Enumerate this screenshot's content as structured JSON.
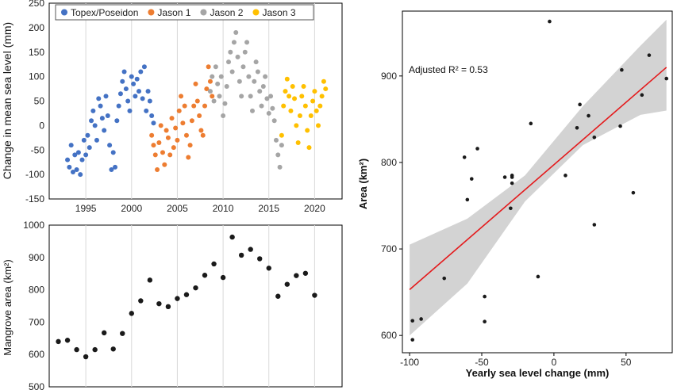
{
  "chart_data": [
    {
      "id": "sea-level",
      "type": "scatter",
      "ylabel": "Change in mean sea level (mm)",
      "xlabel": "",
      "xlim": [
        1991,
        2023
      ],
      "ylim": [
        -150,
        250
      ],
      "xticks": [
        1995,
        2000,
        2005,
        2010,
        2015,
        2020
      ],
      "yticks": [
        -150,
        -100,
        -50,
        0,
        50,
        100,
        150,
        200,
        250
      ],
      "grid": "vertical",
      "legend": "top",
      "series": [
        {
          "name": "Topex/Poseidon",
          "color": "#4472c4",
          "x": [
            1993.0,
            1993.2,
            1993.4,
            1993.6,
            1993.8,
            1994.0,
            1994.2,
            1994.4,
            1994.6,
            1994.8,
            1995.0,
            1995.2,
            1995.4,
            1995.6,
            1995.8,
            1996.0,
            1996.2,
            1996.4,
            1996.6,
            1996.8,
            1997.0,
            1997.2,
            1997.4,
            1997.6,
            1997.8,
            1998.0,
            1998.2,
            1998.4,
            1998.6,
            1998.8,
            1999.0,
            1999.2,
            1999.4,
            1999.6,
            1999.8,
            2000.0,
            2000.2,
            2000.4,
            2000.6,
            2000.8,
            2001.0,
            2001.2,
            2001.4,
            2001.6,
            2001.8,
            2002.0,
            2002.2,
            2002.4
          ],
          "y": [
            -70,
            -85,
            -40,
            -95,
            -60,
            -90,
            -55,
            -100,
            -70,
            -30,
            -60,
            -20,
            -45,
            10,
            30,
            0,
            -30,
            55,
            40,
            15,
            -10,
            60,
            20,
            -40,
            -90,
            -55,
            -85,
            10,
            40,
            65,
            90,
            110,
            75,
            50,
            30,
            100,
            85,
            60,
            95,
            70,
            110,
            55,
            120,
            30,
            70,
            50,
            20,
            5
          ]
        },
        {
          "name": "Jason 1",
          "color": "#ed7d31",
          "x": [
            2002.2,
            2002.4,
            2002.6,
            2002.8,
            2003.0,
            2003.2,
            2003.4,
            2003.6,
            2003.8,
            2004.0,
            2004.2,
            2004.4,
            2004.6,
            2004.8,
            2005.0,
            2005.2,
            2005.4,
            2005.6,
            2005.8,
            2006.0,
            2006.2,
            2006.4,
            2006.6,
            2006.8,
            2007.0,
            2007.2,
            2007.4,
            2007.6,
            2007.8,
            2008.0,
            2008.2,
            2008.4,
            2008.6,
            2008.8
          ],
          "y": [
            -20,
            -40,
            -60,
            -90,
            -35,
            0,
            -55,
            -80,
            -10,
            -25,
            -60,
            15,
            -45,
            -5,
            -30,
            30,
            60,
            5,
            40,
            -20,
            -65,
            -40,
            10,
            40,
            85,
            50,
            20,
            -10,
            -20,
            40,
            75,
            120,
            90,
            60
          ]
        },
        {
          "name": "Jason 2",
          "color": "#a5a5a5",
          "x": [
            2008.6,
            2008.8,
            2009.0,
            2009.2,
            2009.4,
            2009.6,
            2009.8,
            2010.0,
            2010.2,
            2010.4,
            2010.6,
            2010.8,
            2011.0,
            2011.2,
            2011.4,
            2011.6,
            2011.8,
            2012.0,
            2012.2,
            2012.4,
            2012.6,
            2012.8,
            2013.0,
            2013.2,
            2013.4,
            2013.6,
            2013.8,
            2014.0,
            2014.2,
            2014.4,
            2014.6,
            2014.8,
            2015.0,
            2015.2,
            2015.4,
            2015.6,
            2015.8,
            2016.0,
            2016.2,
            2016.4
          ],
          "y": [
            70,
            100,
            50,
            120,
            85,
            60,
            100,
            20,
            45,
            80,
            130,
            150,
            110,
            170,
            190,
            140,
            90,
            60,
            120,
            150,
            170,
            100,
            60,
            30,
            90,
            130,
            110,
            70,
            40,
            80,
            100,
            55,
            25,
            60,
            35,
            10,
            -30,
            -60,
            -85,
            -40
          ]
        },
        {
          "name": "Jason 3",
          "color": "#ffc000",
          "x": [
            2016.4,
            2016.6,
            2016.8,
            2017.0,
            2017.2,
            2017.4,
            2017.6,
            2017.8,
            2018.0,
            2018.2,
            2018.4,
            2018.6,
            2018.8,
            2019.0,
            2019.2,
            2019.4,
            2019.6,
            2019.8,
            2020.0,
            2020.2,
            2020.4,
            2020.6,
            2020.8,
            2021.0,
            2021.2
          ],
          "y": [
            -20,
            40,
            70,
            95,
            60,
            30,
            80,
            55,
            0,
            -35,
            20,
            60,
            80,
            40,
            -10,
            -45,
            20,
            50,
            70,
            30,
            0,
            40,
            60,
            90,
            75
          ]
        }
      ]
    },
    {
      "id": "mangrove-area",
      "type": "scatter",
      "ylabel": "Mangrove area (km²)",
      "ylim": [
        500,
        1000
      ],
      "yticks": [
        500,
        600,
        700,
        800,
        900,
        1000
      ],
      "xlim": [
        1991,
        2023
      ],
      "color": "#1a1a1a",
      "x": [
        1992,
        1993,
        1994,
        1995,
        1996,
        1997,
        1998,
        1999,
        2000,
        2001,
        2002,
        2003,
        2004,
        2005,
        2006,
        2007,
        2008,
        2009,
        2010,
        2011,
        2012,
        2013,
        2014,
        2015,
        2016,
        2017,
        2018,
        2019,
        2020
      ],
      "y": [
        640,
        644,
        615,
        593,
        615,
        667,
        617,
        665,
        727,
        766,
        830,
        757,
        748,
        773,
        785,
        806,
        845,
        880,
        838,
        963,
        907,
        925,
        896,
        867,
        780,
        817,
        844,
        851,
        783
      ]
    },
    {
      "id": "area-vs-sea-level",
      "type": "scatter",
      "xlabel": "Yearly sea level change (mm)",
      "ylabel": "Area (km²)",
      "xlim": [
        -105,
        82
      ],
      "ylim": [
        580,
        975
      ],
      "xticks": [
        -100,
        -50,
        0,
        50
      ],
      "yticks": [
        600,
        700,
        800,
        900
      ],
      "annotation_prefix": "Adjusted ",
      "annotation_r2": "R² = 0.53",
      "fit": {
        "x": [
          -100,
          78
        ],
        "y": [
          653,
          910
        ],
        "color": "#e41a1c",
        "ci_color": "#d3d3d3"
      },
      "ci": {
        "x": [
          -100,
          -60,
          -20,
          20,
          60,
          78
        ],
        "lower": [
          600,
          660,
          755,
          820,
          855,
          860
        ],
        "upper": [
          705,
          735,
          785,
          865,
          935,
          965
        ]
      },
      "points": {
        "color": "#1a1a1a",
        "x": [
          -98,
          -98,
          -92,
          -76,
          -62,
          -60,
          -57,
          -53,
          -48,
          -48,
          -34,
          -30,
          -29,
          -29,
          -29,
          -16,
          -11,
          -3,
          8,
          16,
          18,
          24,
          28,
          28,
          46,
          47,
          55,
          61,
          66,
          78
        ],
        "y": [
          595,
          617,
          619,
          666,
          806,
          757,
          781,
          816,
          645,
          616,
          783,
          747,
          785,
          776,
          783,
          845,
          668,
          963,
          785,
          840,
          867,
          854,
          829,
          728,
          842,
          907,
          765,
          878,
          924,
          897
        ]
      }
    }
  ]
}
